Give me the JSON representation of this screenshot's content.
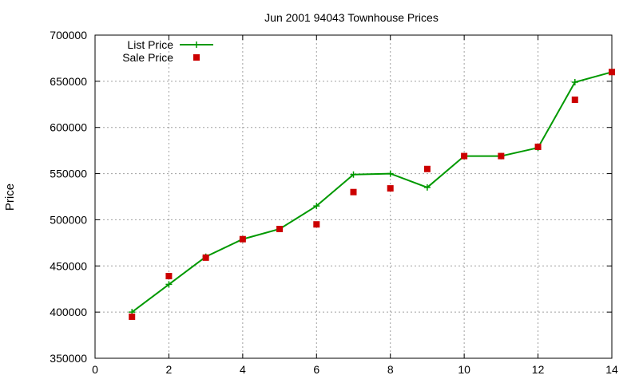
{
  "chart_data": {
    "type": "line",
    "title": "Jun 2001 94043 Townhouse Prices",
    "xlabel": "",
    "ylabel": "Price",
    "xlim": [
      0,
      14
    ],
    "ylim": [
      350000,
      700000
    ],
    "x_ticks": [
      0,
      2,
      4,
      6,
      8,
      10,
      12,
      14
    ],
    "y_ticks": [
      350000,
      400000,
      450000,
      500000,
      550000,
      600000,
      650000,
      700000
    ],
    "grid": true,
    "legend_position": "top-left",
    "x": [
      1,
      2,
      3,
      4,
      5,
      6,
      7,
      8,
      9,
      10,
      11,
      12,
      13,
      14
    ],
    "series": [
      {
        "name": "List Price",
        "style": "line-with-plus-markers",
        "color": "#009900",
        "values": [
          400000,
          430000,
          460000,
          479000,
          490000,
          515000,
          549000,
          550000,
          535000,
          569000,
          569000,
          578000,
          649000,
          660000
        ]
      },
      {
        "name": "Sale Price",
        "style": "square-markers",
        "color": "#cc0000",
        "values": [
          395000,
          439000,
          459000,
          479000,
          490000,
          495000,
          530000,
          534000,
          555000,
          569000,
          569000,
          579000,
          630000,
          660000
        ]
      }
    ]
  }
}
